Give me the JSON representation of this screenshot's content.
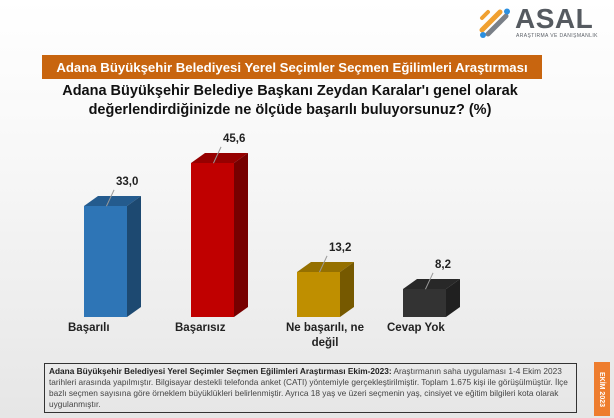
{
  "logo": {
    "name": "ASAL",
    "subtitle": "ARAŞTIRMA VE DANIŞMANLIK",
    "icon": "asal-logo-icon"
  },
  "banner": {
    "title": "Adana Büyükşehir Belediyesi Yerel Seçimler Seçmen Eğilimleri Araştırması",
    "color": "#c8650f"
  },
  "question": {
    "line1": "Adana Büyükşehir Belediye Başkanı Zeydan Karalar'ı genel olarak",
    "line2": "değerlendirdiğinizde ne ölçüde başarılı buluyorsunuz? (%)"
  },
  "chart_data": {
    "type": "bar",
    "title": "Adana Büyükşehir Belediye Başkanı Zeydan Karalar'ı genel olarak değerlendirdiğinizde ne ölçüde başarılı buluyorsunuz? (%)",
    "categories": [
      "Başarılı",
      "Başarısız",
      "Ne başarılı, ne değil",
      "Cevap Yok"
    ],
    "values": [
      33.0,
      45.6,
      13.2,
      8.2
    ],
    "value_labels": [
      "33,0",
      "45,6",
      "13,2",
      "8,2"
    ],
    "colors": [
      "#2e75b6",
      "#c00000",
      "#bf8f00",
      "#333333"
    ],
    "xlabel": "",
    "ylabel": "%",
    "ylim": [
      0,
      50
    ],
    "grid": false,
    "legend": "none",
    "style": "3d-column"
  },
  "categories_display": [
    {
      "line1": "Başarılı",
      "line2": ""
    },
    {
      "line1": "Başarısız",
      "line2": ""
    },
    {
      "line1": "Ne başarılı, ne",
      "line2": "değil"
    },
    {
      "line1": "Cevap Yok",
      "line2": ""
    }
  ],
  "note": {
    "bold": "Adana Büyükşehir Belediyesi Yerel Seçimler Seçmen Eğilimleri Araştırması Ekim-2023:",
    "text": " Araştırmanın saha uygulaması 1-4 Ekim 2023 tarihleri arasında yapılmıştır. Bilgisayar destekli telefonda anket (CATI) yöntemiyle gerçekleştirilmiştir. Toplam 1.675 kişi ile görüşülmüştür. İlçe bazlı seçmen sayısına göre örneklem büyüklükleri belirlenmiştir. Ayrıca 18 yaş ve üzeri seçmenin yaş, cinsiyet ve eğitim bilgileri kota olarak uygulanmıştır."
  },
  "side_tab": {
    "label": "EKİM 2023",
    "color": "#ee7d2e"
  }
}
